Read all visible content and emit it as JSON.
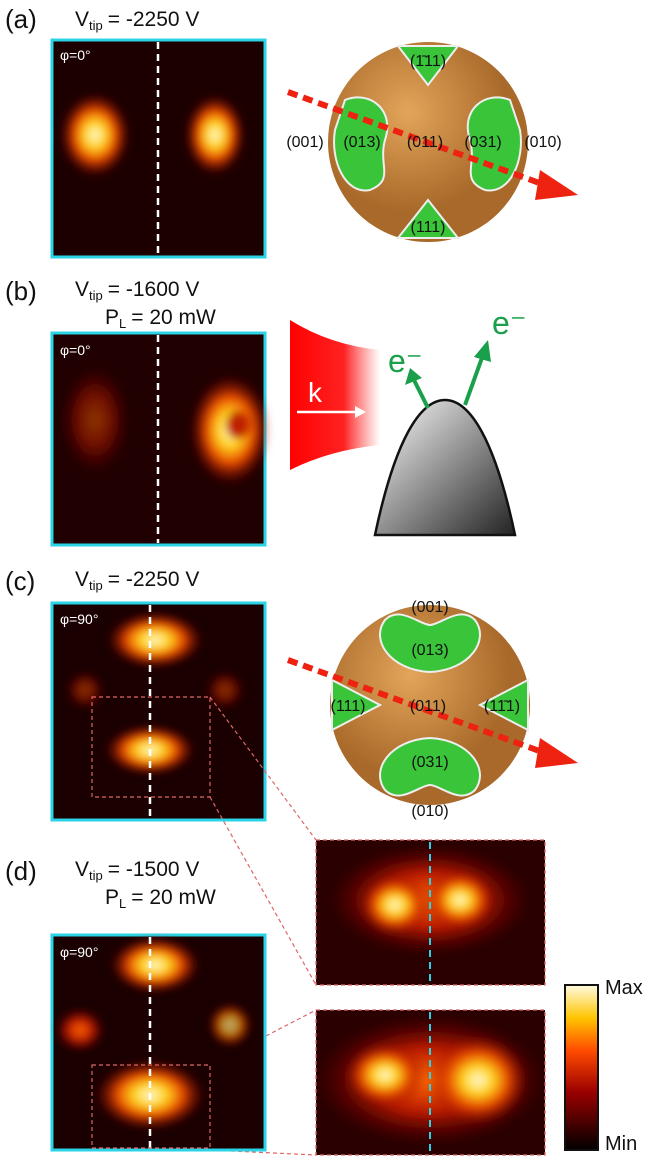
{
  "panels": [
    {
      "label": "(a)",
      "voltage": {
        "symbol": "V",
        "subscript": "tip",
        "value": "= -2250 V"
      },
      "angle": "φ=0°",
      "facets": [
        "(1̄11)",
        "(001)",
        "(013)",
        "(011)",
        "(031)",
        "(010)",
        "(111)"
      ]
    },
    {
      "label": "(b)",
      "voltage": {
        "symbol": "V",
        "subscript": "tip",
        "value": "= -1600 V"
      },
      "power": {
        "symbol": "P",
        "subscript": "L",
        "value": "= 20 mW"
      },
      "angle": "φ=0°",
      "beam": "k",
      "electrons": [
        "e⁻",
        "e⁻"
      ]
    },
    {
      "label": "(c)",
      "voltage": {
        "symbol": "V",
        "subscript": "tip",
        "value": "= -2250 V"
      },
      "angle": "φ=90°",
      "facets": [
        "(001)",
        "(013)",
        "(111)",
        "(011)",
        "(11̄1)",
        "(031)",
        "(010)"
      ]
    },
    {
      "label": "(d)",
      "voltage": {
        "symbol": "V",
        "subscript": "tip",
        "value": "= -1500 V"
      },
      "power": {
        "symbol": "P",
        "subscript": "L",
        "value": "= 20 mW"
      },
      "angle": "φ=90°"
    }
  ],
  "colorbar": {
    "max": "Max",
    "min": "Min"
  }
}
